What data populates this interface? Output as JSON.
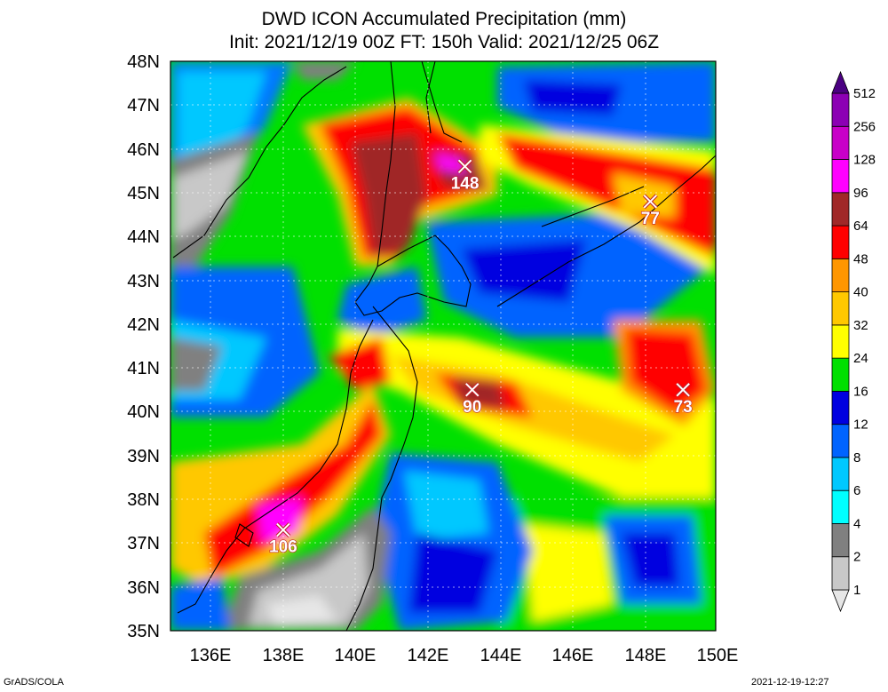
{
  "title": {
    "line1": "DWD ICON Accumulated Precipitation (mm)",
    "line2": "Init: 2021/12/19 00Z  FT: 150h  Valid: 2021/12/25 06Z"
  },
  "axes": {
    "lat_labels": [
      "48N",
      "47N",
      "46N",
      "45N",
      "44N",
      "43N",
      "42N",
      "41N",
      "40N",
      "39N",
      "38N",
      "37N",
      "36N",
      "35N"
    ],
    "lon_labels": [
      "136E",
      "138E",
      "140E",
      "142E",
      "144E",
      "146E",
      "148E",
      "150E"
    ],
    "lon_range": [
      135,
      150
    ],
    "lat_range": [
      35,
      48
    ]
  },
  "colorbar": {
    "labels": [
      "1",
      "2",
      "4",
      "6",
      "8",
      "12",
      "16",
      "24",
      "32",
      "40",
      "48",
      "64",
      "96",
      "128",
      "256",
      "512"
    ],
    "colors": [
      "#e6e6e6",
      "#c8c8c8",
      "#808080",
      "#00ffff",
      "#00c8ff",
      "#0064ff",
      "#0000e0",
      "#00e000",
      "#ffff00",
      "#ffc800",
      "#ff9600",
      "#ff0000",
      "#a02828",
      "#ff00ff",
      "#c800c8",
      "#8c00b4",
      "#4b0082"
    ]
  },
  "maxima": [
    {
      "value": "148",
      "lon": 143.1,
      "lat": 45.6
    },
    {
      "value": "77",
      "lon": 148.2,
      "lat": 44.8
    },
    {
      "value": "90",
      "lon": 143.3,
      "lat": 40.5
    },
    {
      "value": "73",
      "lon": 149.1,
      "lat": 40.5
    },
    {
      "value": "106",
      "lon": 138.1,
      "lat": 37.3
    }
  ],
  "footer": {
    "left": "GrADS/COLA",
    "right": "2021-12-19-12:27"
  }
}
